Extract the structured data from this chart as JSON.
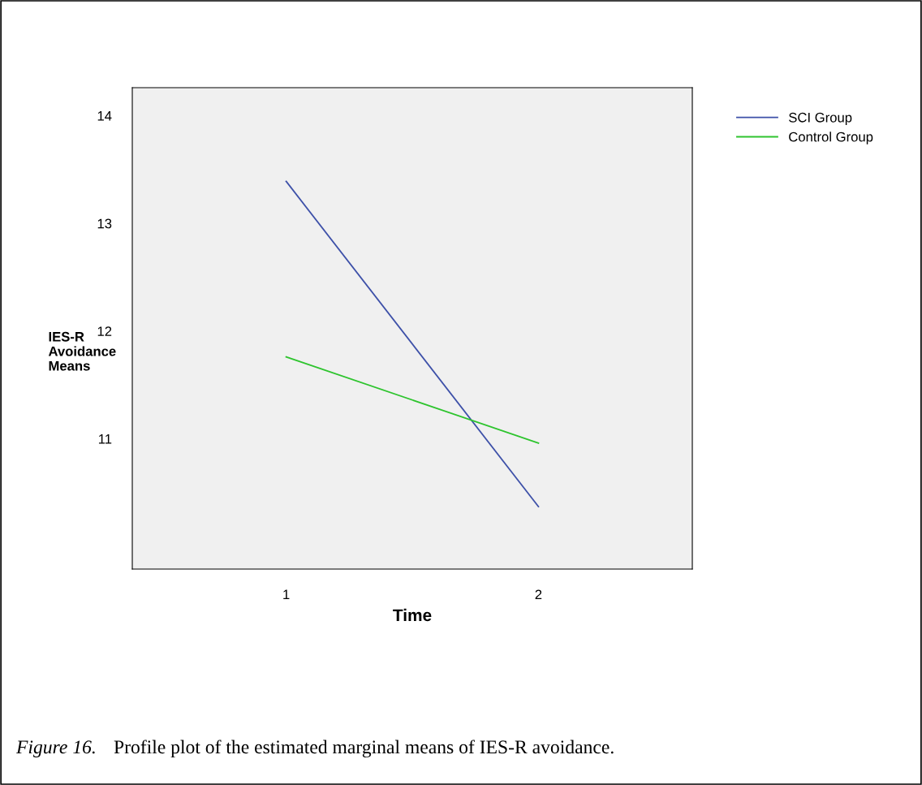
{
  "chart_data": {
    "type": "line",
    "xlabel": "Time",
    "ylabel": "IES-R\nAvoidance\nMeans",
    "x": [
      1,
      2
    ],
    "series": [
      {
        "name": "SCI Group",
        "color": "#3d50a8",
        "values": [
          13.39,
          10.37
        ]
      },
      {
        "name": "Control Group",
        "color": "#2ec42e",
        "values": [
          11.76,
          10.96
        ]
      }
    ],
    "xlim": [
      0.39,
      2.61
    ],
    "xticks": [
      1,
      2
    ],
    "ylim": [
      9.79,
      14.26
    ],
    "yticks": [
      11,
      12,
      13,
      14
    ],
    "grid": false,
    "legend": "top right",
    "marker": "none",
    "line_style": "solid",
    "annotations": [
      "Figure 16.",
      "Profile plot of the estimated marginal means of IES-R avoidance."
    ]
  }
}
